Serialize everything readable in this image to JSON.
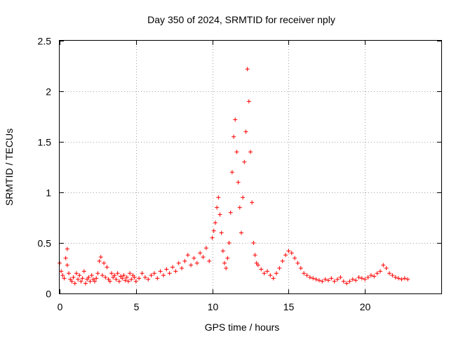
{
  "chart_data": {
    "type": "scatter",
    "title": "Day 350 of 2024, SRMTID for receiver nply",
    "xlabel": "GPS time / hours",
    "ylabel": "SRMTID / TECUs",
    "xlim": [
      0,
      25
    ],
    "ylim": [
      0,
      2.5
    ],
    "xticks": [
      0,
      5,
      10,
      15,
      20
    ],
    "xtick_labels": [
      "0",
      "5",
      "10",
      "15",
      "20"
    ],
    "yticks": [
      0,
      0.5,
      1,
      1.5,
      2,
      2.5
    ],
    "ytick_labels": [
      "0",
      "0.5",
      "1",
      "1.5",
      "2",
      "2.5"
    ],
    "grid": true,
    "marker": "+",
    "color": "#ff0000",
    "series": [
      {
        "name": "SRMTID",
        "x": [
          0.0,
          0.1,
          0.2,
          0.3,
          0.4,
          0.5,
          0.5,
          0.6,
          0.7,
          0.8,
          0.9,
          1.0,
          1.1,
          1.2,
          1.3,
          1.4,
          1.5,
          1.6,
          1.7,
          1.8,
          1.9,
          2.0,
          2.1,
          2.2,
          2.3,
          2.4,
          2.5,
          2.6,
          2.7,
          2.8,
          2.9,
          3.0,
          3.1,
          3.2,
          3.3,
          3.4,
          3.5,
          3.6,
          3.7,
          3.8,
          3.9,
          4.0,
          4.1,
          4.2,
          4.3,
          4.4,
          4.5,
          4.6,
          4.7,
          4.8,
          4.9,
          5.0,
          5.2,
          5.4,
          5.6,
          5.8,
          6.0,
          6.2,
          6.4,
          6.6,
          6.8,
          7.0,
          7.2,
          7.4,
          7.6,
          7.8,
          8.0,
          8.2,
          8.4,
          8.6,
          8.8,
          9.0,
          9.2,
          9.4,
          9.6,
          9.8,
          10.0,
          10.1,
          10.2,
          10.3,
          10.4,
          10.5,
          10.6,
          10.7,
          10.8,
          10.9,
          11.0,
          11.1,
          11.2,
          11.3,
          11.4,
          11.5,
          11.6,
          11.7,
          11.8,
          11.9,
          12.0,
          12.1,
          12.2,
          12.3,
          12.4,
          12.5,
          12.6,
          12.7,
          12.8,
          12.9,
          13.0,
          13.2,
          13.4,
          13.6,
          13.8,
          14.0,
          14.2,
          14.4,
          14.6,
          14.8,
          15.0,
          15.2,
          15.4,
          15.6,
          15.8,
          16.0,
          16.2,
          16.4,
          16.6,
          16.8,
          17.0,
          17.2,
          17.4,
          17.6,
          17.8,
          18.0,
          18.2,
          18.4,
          18.6,
          18.8,
          19.0,
          19.2,
          19.4,
          19.6,
          19.8,
          20.0,
          20.2,
          20.4,
          20.6,
          20.8,
          21.0,
          21.2,
          21.4,
          21.6,
          21.8,
          22.0,
          22.2,
          22.4,
          22.6,
          22.8
        ],
        "y": [
          0.3,
          0.22,
          0.18,
          0.15,
          0.35,
          0.44,
          0.28,
          0.2,
          0.14,
          0.12,
          0.16,
          0.1,
          0.2,
          0.14,
          0.18,
          0.12,
          0.15,
          0.22,
          0.1,
          0.14,
          0.16,
          0.12,
          0.18,
          0.14,
          0.12,
          0.15,
          0.2,
          0.32,
          0.36,
          0.18,
          0.3,
          0.16,
          0.26,
          0.14,
          0.12,
          0.2,
          0.16,
          0.18,
          0.14,
          0.2,
          0.12,
          0.17,
          0.15,
          0.18,
          0.13,
          0.16,
          0.12,
          0.2,
          0.14,
          0.18,
          0.16,
          0.12,
          0.15,
          0.2,
          0.16,
          0.14,
          0.18,
          0.2,
          0.15,
          0.22,
          0.18,
          0.24,
          0.2,
          0.26,
          0.22,
          0.3,
          0.25,
          0.32,
          0.38,
          0.28,
          0.35,
          0.3,
          0.4,
          0.36,
          0.45,
          0.32,
          0.55,
          0.62,
          0.7,
          0.85,
          0.95,
          0.78,
          0.6,
          0.42,
          0.3,
          0.25,
          0.35,
          0.5,
          0.8,
          1.2,
          1.55,
          1.72,
          1.4,
          1.1,
          0.85,
          0.6,
          0.95,
          1.3,
          1.6,
          2.22,
          1.9,
          1.4,
          0.9,
          0.5,
          0.38,
          0.3,
          0.28,
          0.24,
          0.2,
          0.22,
          0.18,
          0.15,
          0.2,
          0.25,
          0.32,
          0.38,
          0.42,
          0.4,
          0.35,
          0.3,
          0.25,
          0.2,
          0.18,
          0.16,
          0.15,
          0.14,
          0.13,
          0.12,
          0.14,
          0.13,
          0.15,
          0.12,
          0.14,
          0.16,
          0.12,
          0.1,
          0.12,
          0.14,
          0.13,
          0.16,
          0.15,
          0.14,
          0.16,
          0.18,
          0.17,
          0.2,
          0.22,
          0.28,
          0.25,
          0.2,
          0.18,
          0.16,
          0.15,
          0.14,
          0.15,
          0.14
        ]
      }
    ]
  }
}
